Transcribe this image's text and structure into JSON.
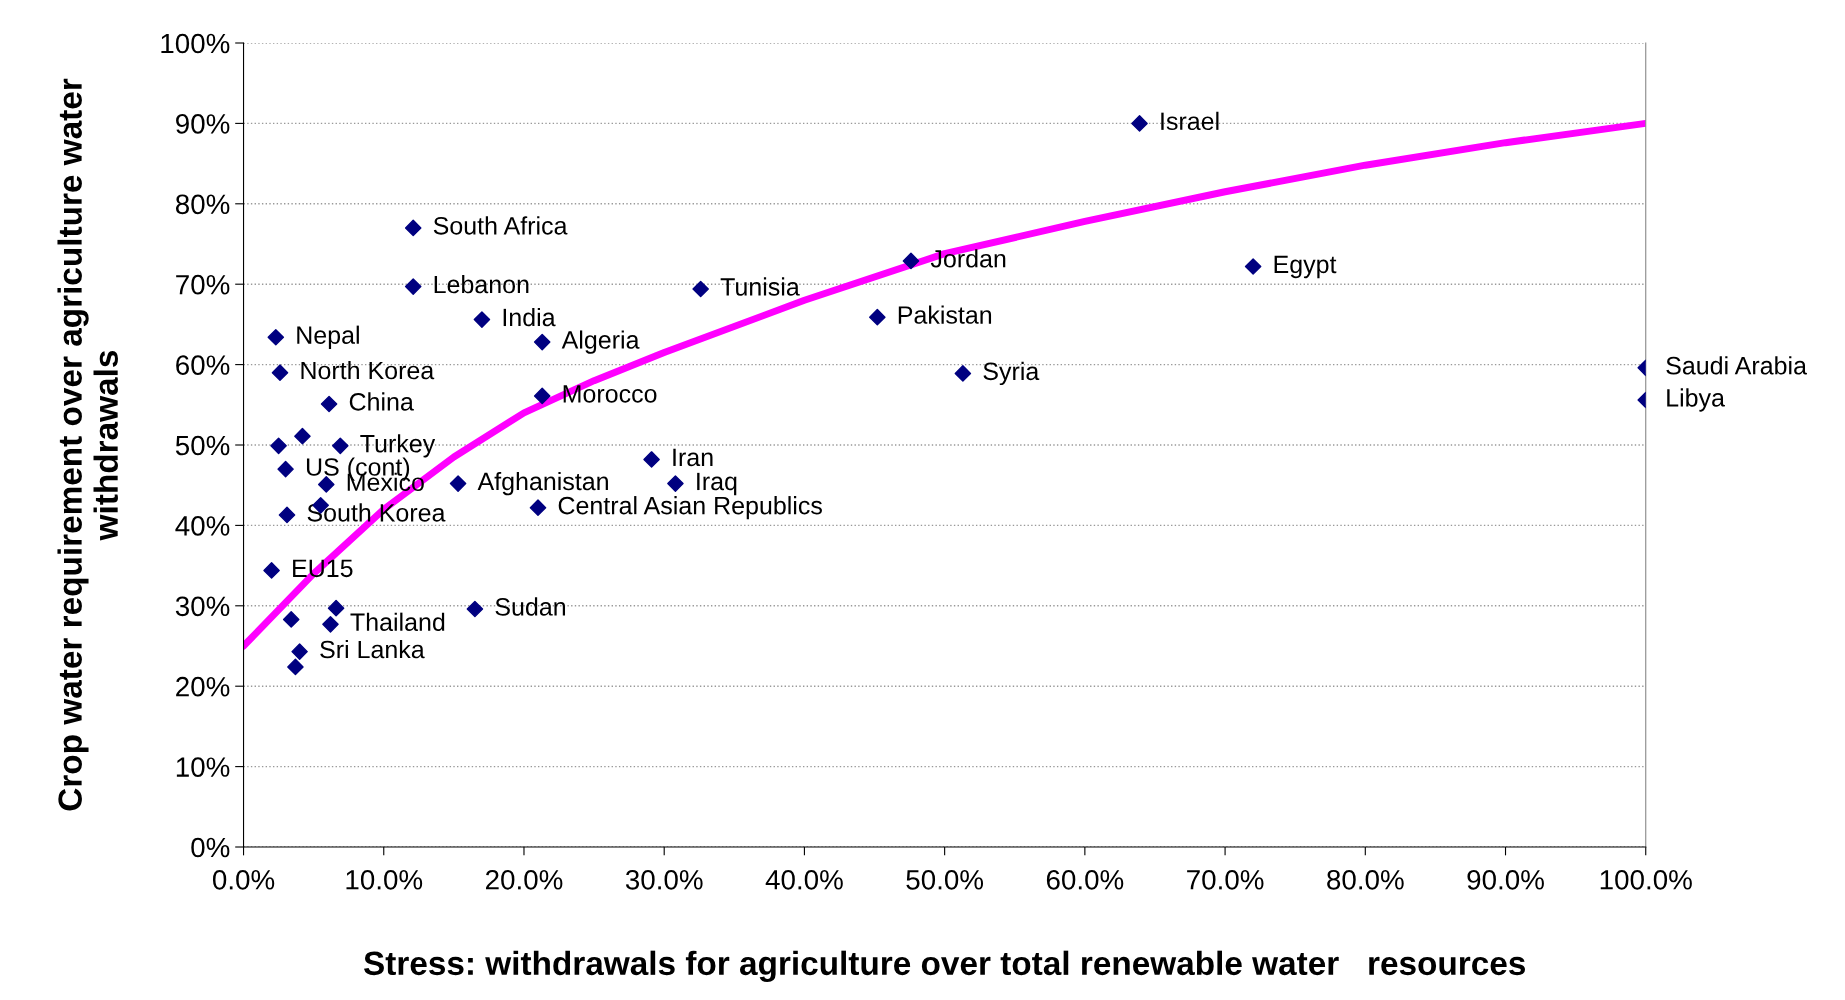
{
  "chart_data": {
    "type": "scatter",
    "xlabel": "Stress: withdrawals for agriculture over total renewable water   resources",
    "ylabel": "Crop water requirement over agriculture water\nwithdrawals",
    "xlim": [
      0,
      100
    ],
    "ylim": [
      0,
      100
    ],
    "xticks": [
      {
        "value": 0,
        "label": "0.0%"
      },
      {
        "value": 10,
        "label": "10.0%"
      },
      {
        "value": 20,
        "label": "20.0%"
      },
      {
        "value": 30,
        "label": "30.0%"
      },
      {
        "value": 40,
        "label": "40.0%"
      },
      {
        "value": 50,
        "label": "50.0%"
      },
      {
        "value": 60,
        "label": "60.0%"
      },
      {
        "value": 70,
        "label": "70.0%"
      },
      {
        "value": 80,
        "label": "80.0%"
      },
      {
        "value": 90,
        "label": "90.0%"
      },
      {
        "value": 100,
        "label": "100.0%"
      }
    ],
    "yticks": [
      {
        "value": 0,
        "label": "0%"
      },
      {
        "value": 10,
        "label": "10%"
      },
      {
        "value": 20,
        "label": "20%"
      },
      {
        "value": 30,
        "label": "30%"
      },
      {
        "value": 40,
        "label": "40%"
      },
      {
        "value": 50,
        "label": "50%"
      },
      {
        "value": 60,
        "label": "60%"
      },
      {
        "value": 70,
        "label": "70%"
      },
      {
        "value": 80,
        "label": "80%"
      },
      {
        "value": 90,
        "label": "90%"
      },
      {
        "value": 100,
        "label": "100%"
      }
    ],
    "grid": "y",
    "legend": false,
    "marker": "diamond",
    "series": [
      {
        "type": "scatter",
        "color": "#000080",
        "x": [
          63.9,
          12.1,
          47.6,
          72.0,
          12.1,
          32.6,
          17.0,
          45.2,
          2.3,
          21.3,
          2.6,
          51.3,
          100,
          100,
          6.1,
          21.3,
          2.5,
          4.2,
          6.9,
          29.1,
          3.0,
          5.9,
          15.3,
          30.8,
          5.5,
          21.0,
          3.1,
          2.0,
          3.4,
          6.6,
          6.2,
          16.5,
          4.0,
          3.7
        ],
        "values": [
          90.0,
          77.0,
          72.9,
          72.2,
          69.7,
          69.4,
          65.6,
          65.9,
          63.4,
          62.8,
          59.0,
          58.9,
          59.6,
          55.6,
          55.1,
          56.1,
          49.9,
          51.1,
          49.9,
          48.2,
          47.0,
          45.1,
          45.2,
          45.2,
          42.5,
          42.2,
          41.3,
          34.4,
          28.3,
          29.7,
          27.7,
          29.6,
          24.3,
          22.4
        ]
      },
      {
        "type": "line",
        "color": "#ff00ff",
        "marker": "none",
        "line_style": "solid",
        "x": [
          0,
          5,
          10,
          15,
          20,
          25,
          30,
          40,
          50,
          60,
          70,
          80,
          90,
          100
        ],
        "values": [
          25,
          34,
          42,
          48.5,
          54,
          58,
          61.5,
          68,
          73.8,
          77.8,
          81.5,
          84.8,
          87.6,
          90
        ]
      }
    ],
    "annotations": [
      {
        "text": "Israel",
        "x": 63.9,
        "y": 90.0
      },
      {
        "text": "South Africa",
        "x": 12.1,
        "y": 77.0
      },
      {
        "text": "Jordan",
        "x": 47.6,
        "y": 72.9
      },
      {
        "text": "Egypt",
        "x": 72.0,
        "y": 72.2
      },
      {
        "text": "Lebanon",
        "x": 12.1,
        "y": 69.7
      },
      {
        "text": "Tunisia",
        "x": 32.6,
        "y": 69.4
      },
      {
        "text": "India",
        "x": 17.0,
        "y": 65.6
      },
      {
        "text": "Pakistan",
        "x": 45.2,
        "y": 65.9
      },
      {
        "text": "Nepal",
        "x": 2.3,
        "y": 63.4
      },
      {
        "text": "Algeria",
        "x": 21.3,
        "y": 62.8
      },
      {
        "text": "North Korea",
        "x": 2.6,
        "y": 59.0
      },
      {
        "text": "Syria",
        "x": 51.3,
        "y": 58.9
      },
      {
        "text": "Saudi Arabia",
        "x": 100,
        "y": 59.6
      },
      {
        "text": "Libya",
        "x": 100,
        "y": 55.6
      },
      {
        "text": "China",
        "x": 6.1,
        "y": 55.1
      },
      {
        "text": "Morocco",
        "x": 21.3,
        "y": 56.1
      },
      {
        "text": "Turkey",
        "x": 6.9,
        "y": 49.9
      },
      {
        "text": "Iran",
        "x": 29.1,
        "y": 48.2
      },
      {
        "text": "US (cont)",
        "x": 3.0,
        "y": 47.0
      },
      {
        "text": "Mexico",
        "x": 5.9,
        "y": 45.1
      },
      {
        "text": "Afghanistan",
        "x": 15.3,
        "y": 45.2
      },
      {
        "text": "Iraq",
        "x": 30.8,
        "y": 45.2
      },
      {
        "text": "Central Asian Republics",
        "x": 21.0,
        "y": 42.2
      },
      {
        "text": "South Korea",
        "x": 3.1,
        "y": 41.3
      },
      {
        "text": "EU15",
        "x": 2.0,
        "y": 34.4
      },
      {
        "text": "Thailand",
        "x": 6.2,
        "y": 27.7
      },
      {
        "text": "Sudan",
        "x": 16.5,
        "y": 29.6
      },
      {
        "text": "Sri Lanka",
        "x": 4.0,
        "y": 24.3
      }
    ]
  }
}
